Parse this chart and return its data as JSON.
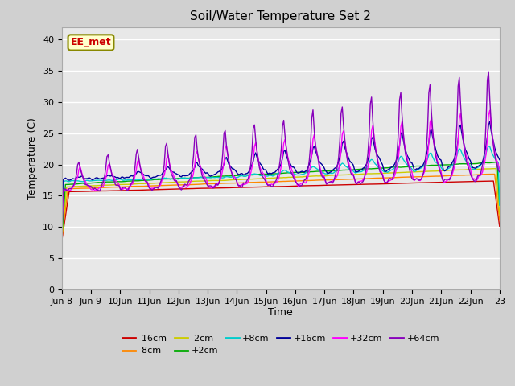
{
  "title": "Soil/Water Temperature Set 2",
  "xlabel": "Time",
  "ylabel": "Temperature (C)",
  "ylim": [
    0,
    42
  ],
  "yticks": [
    0,
    5,
    10,
    15,
    20,
    25,
    30,
    35,
    40
  ],
  "fig_bg_color": "#d0d0d0",
  "plot_bg_color": "#e8e8e8",
  "legend_entries": [
    "-16cm",
    "-8cm",
    "-2cm",
    "+2cm",
    "+8cm",
    "+16cm",
    "+32cm",
    "+64cm"
  ],
  "legend_colors": [
    "#cc0000",
    "#ff8800",
    "#cccc00",
    "#00aa00",
    "#00cccc",
    "#000099",
    "#ff00ff",
    "#8800bb"
  ],
  "annotation_text": "EE_met",
  "annotation_color": "#cc0000",
  "annotation_bg": "#ffffcc",
  "annotation_border": "#888800",
  "n_days": 15,
  "hours_per_day": 24
}
